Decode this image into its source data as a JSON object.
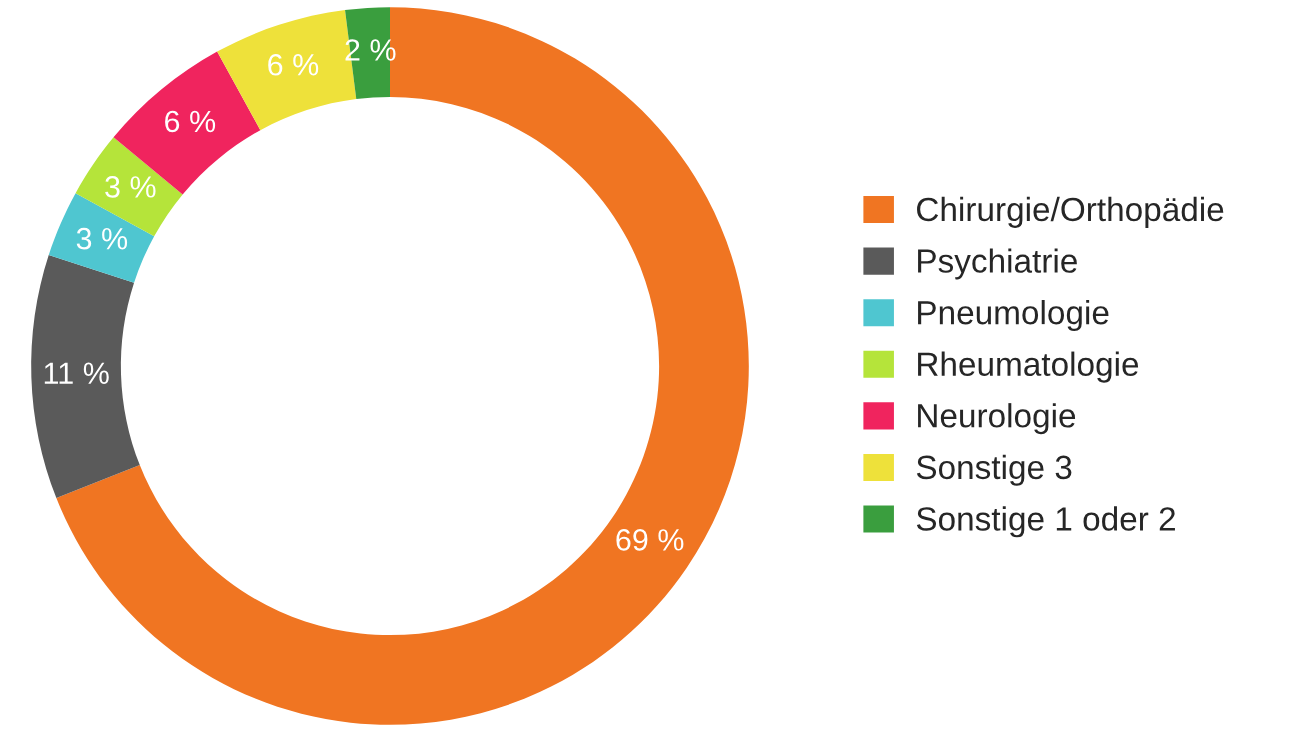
{
  "chart_data": {
    "type": "donut",
    "categories": [
      "Chirurgie/Orthopädie",
      "Psychiatrie",
      "Pneumologie",
      "Rheumatologie",
      "Neurologie",
      "Sonstige 3",
      "Sonstige 1 oder 2"
    ],
    "values": [
      69,
      11,
      3,
      3,
      6,
      6,
      2
    ],
    "value_labels": [
      "69 %",
      "11 %",
      "3 %",
      "3 %",
      "6 %",
      "6 %",
      "2 %"
    ],
    "colors": [
      "#f07522",
      "#5a5a5a",
      "#4fc6d0",
      "#b5e43a",
      "#f0245e",
      "#eee13a",
      "#3a9e3e"
    ],
    "legend": "right"
  }
}
